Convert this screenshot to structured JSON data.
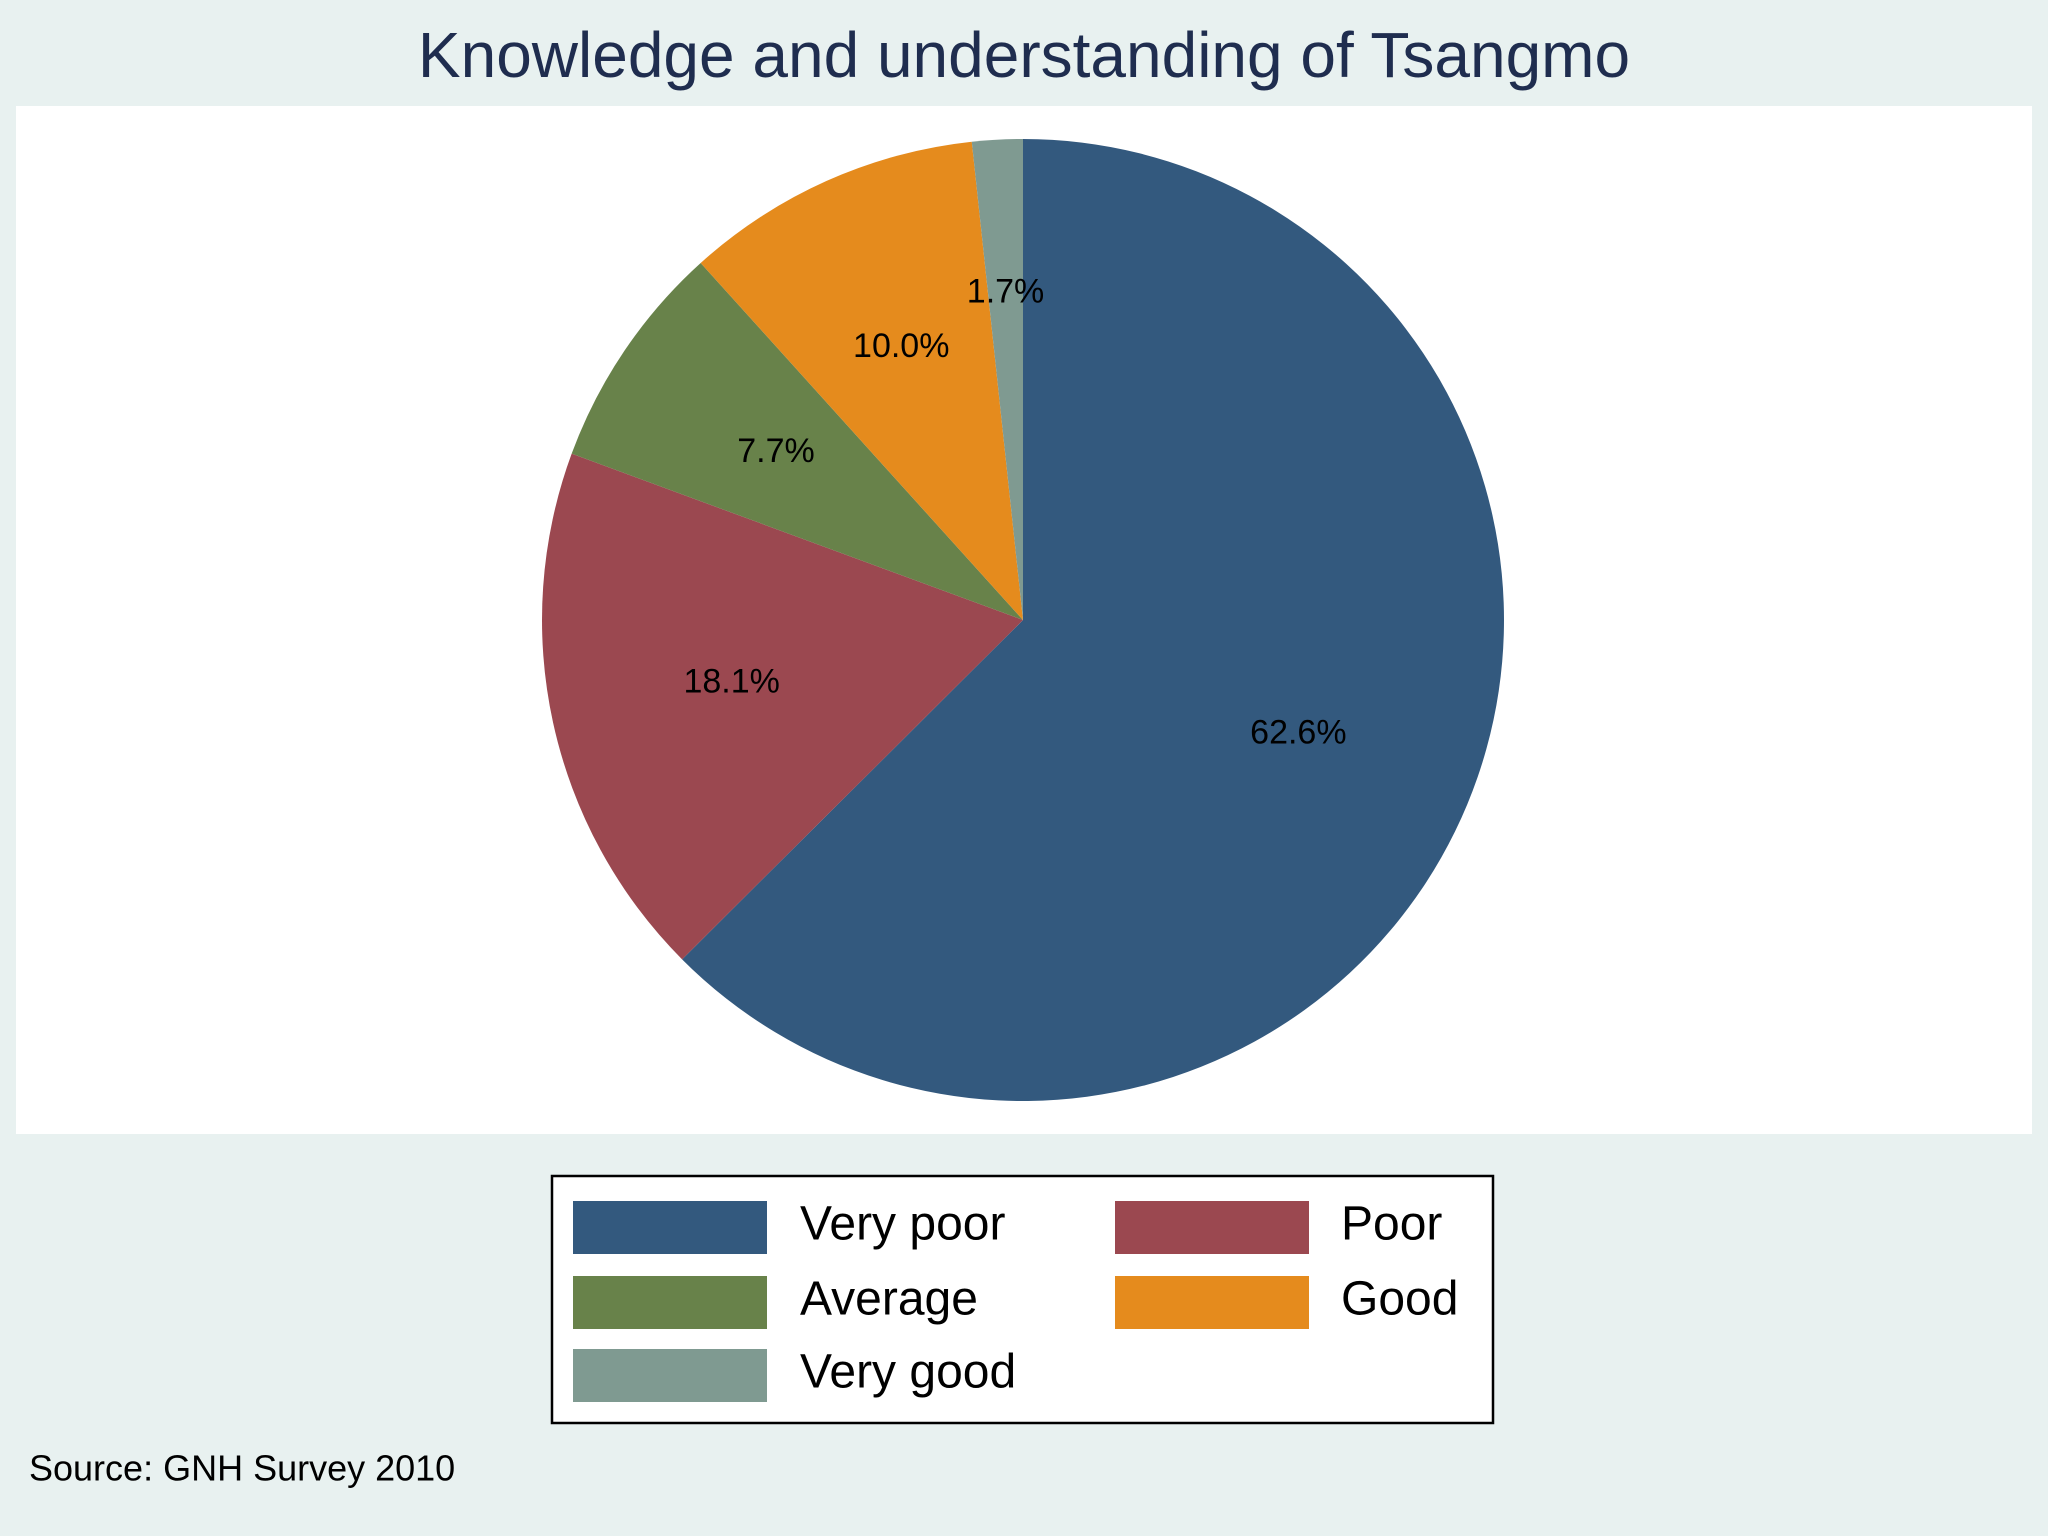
{
  "chart_data": {
    "type": "pie",
    "title": "Knowledge and understanding of Tsangmo",
    "categories": [
      "Very poor",
      "Poor",
      "Average",
      "Good",
      "Very good"
    ],
    "values": [
      62.6,
      18.1,
      7.7,
      10.0,
      1.7
    ],
    "value_labels": [
      "62.6%",
      "18.1%",
      "7.7%",
      "10.0%",
      "1.7%"
    ],
    "colors": [
      "#33597e",
      "#9b4850",
      "#68824a",
      "#e58b1d",
      "#7f9a91"
    ],
    "note": "Source: GNH Survey 2010"
  }
}
